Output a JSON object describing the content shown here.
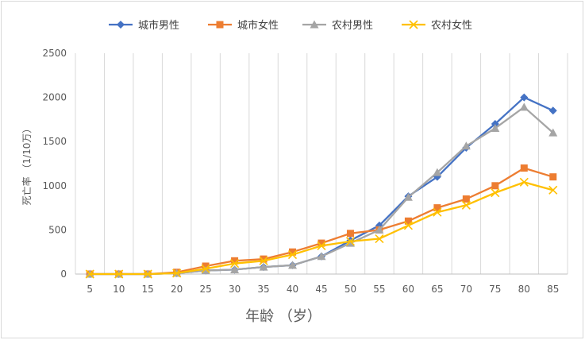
{
  "chart_data": {
    "type": "line",
    "xlabel": "年龄 （岁）",
    "ylabel": "死亡率 （1/10万）",
    "categories": [
      "5",
      "10",
      "15",
      "20",
      "25",
      "30",
      "35",
      "40",
      "45",
      "50",
      "55",
      "60",
      "65",
      "70",
      "75",
      "80",
      "85"
    ],
    "ylim": [
      0,
      2500
    ],
    "yticks": [
      0,
      500,
      1000,
      1500,
      2000,
      2500
    ],
    "grid": "vertical",
    "legend_position": "top",
    "series": [
      {
        "name": "城市男性",
        "color": "#4472C4",
        "marker": "diamond",
        "values": [
          0,
          0,
          0,
          10,
          40,
          50,
          80,
          100,
          200,
          380,
          550,
          880,
          1100,
          1430,
          1700,
          2000,
          1850
        ]
      },
      {
        "name": "城市女性",
        "color": "#ED7D31",
        "marker": "square",
        "values": [
          0,
          0,
          0,
          20,
          90,
          150,
          170,
          250,
          350,
          460,
          500,
          600,
          750,
          850,
          1000,
          1200,
          1100
        ]
      },
      {
        "name": "农村男性",
        "color": "#A5A5A5",
        "marker": "triangle",
        "values": [
          0,
          0,
          0,
          10,
          40,
          50,
          80,
          100,
          200,
          350,
          500,
          870,
          1150,
          1450,
          1650,
          1890,
          1600
        ]
      },
      {
        "name": "农村女性",
        "color": "#FFC000",
        "marker": "x",
        "values": [
          0,
          0,
          0,
          10,
          60,
          120,
          150,
          220,
          320,
          370,
          400,
          550,
          700,
          780,
          920,
          1040,
          950
        ]
      }
    ]
  }
}
